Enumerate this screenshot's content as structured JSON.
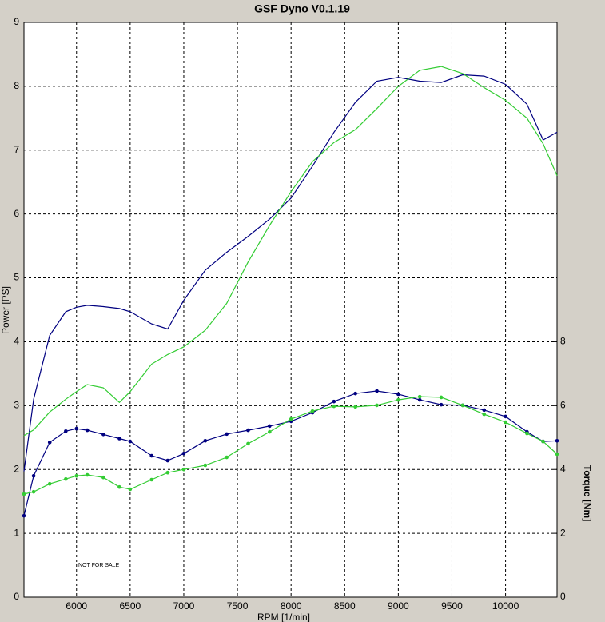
{
  "chart_data": {
    "type": "line",
    "title": "GSF Dyno V0.1.19",
    "x_label": "RPM [1/min]",
    "y_label": "Power [PS]",
    "y2_label": "Torque [Nm]",
    "annotation": "NOT FOR SALE",
    "x": [
      5510,
      5600,
      5750,
      5900,
      6000,
      6100,
      6250,
      6400,
      6500,
      6700,
      6850,
      7000,
      7200,
      7400,
      7600,
      7800,
      8000,
      8200,
      8400,
      8600,
      8800,
      9000,
      9200,
      9400,
      9600,
      9800,
      10000,
      10200,
      10350,
      10480
    ],
    "series": [
      {
        "color": "#000080",
        "axis": "y",
        "markers": false,
        "values": [
          1.97,
          3.1,
          4.1,
          4.47,
          4.54,
          4.57,
          4.55,
          4.52,
          4.47,
          4.28,
          4.2,
          4.65,
          5.12,
          5.4,
          5.65,
          5.92,
          6.25,
          6.75,
          7.28,
          7.75,
          8.08,
          8.14,
          8.08,
          8.06,
          8.18,
          8.16,
          8.03,
          7.72,
          7.16,
          7.28
        ]
      },
      {
        "color": "#33cc33",
        "axis": "y",
        "markers": false,
        "values": [
          2.53,
          2.62,
          2.9,
          3.1,
          3.22,
          3.33,
          3.28,
          3.05,
          3.22,
          3.65,
          3.8,
          3.92,
          4.18,
          4.6,
          5.25,
          5.82,
          6.35,
          6.82,
          7.12,
          7.32,
          7.65,
          8.0,
          8.25,
          8.31,
          8.2,
          7.98,
          7.78,
          7.5,
          7.1,
          6.6
        ]
      },
      {
        "color": "#000080",
        "axis": "y2",
        "markers": true,
        "values": [
          2.55,
          3.8,
          4.85,
          5.2,
          5.28,
          5.23,
          5.1,
          4.97,
          4.88,
          4.43,
          4.28,
          4.5,
          4.9,
          5.11,
          5.23,
          5.36,
          5.51,
          5.78,
          6.13,
          6.38,
          6.46,
          6.36,
          6.18,
          6.03,
          6.01,
          5.86,
          5.66,
          5.18,
          4.88,
          4.9
        ]
      },
      {
        "color": "#33cc33",
        "axis": "y2",
        "markers": true,
        "values": [
          3.23,
          3.3,
          3.55,
          3.7,
          3.8,
          3.83,
          3.75,
          3.45,
          3.38,
          3.68,
          3.9,
          4.0,
          4.13,
          4.38,
          4.81,
          5.18,
          5.58,
          5.83,
          5.98,
          5.96,
          6.01,
          6.18,
          6.28,
          6.26,
          6.01,
          5.73,
          5.48,
          5.13,
          4.88,
          4.48
        ]
      }
    ],
    "xlim": [
      5510,
      10480
    ],
    "xticks": [
      6000,
      6500,
      7000,
      7500,
      8000,
      8500,
      9000,
      9500,
      10000
    ],
    "ylim": [
      0,
      9
    ],
    "yticks": [
      0,
      1,
      2,
      3,
      4,
      5,
      6,
      7,
      8,
      9
    ],
    "y2lim": [
      0,
      18
    ],
    "y2ticks": [
      0,
      2,
      4,
      6,
      8
    ],
    "grid": true
  }
}
